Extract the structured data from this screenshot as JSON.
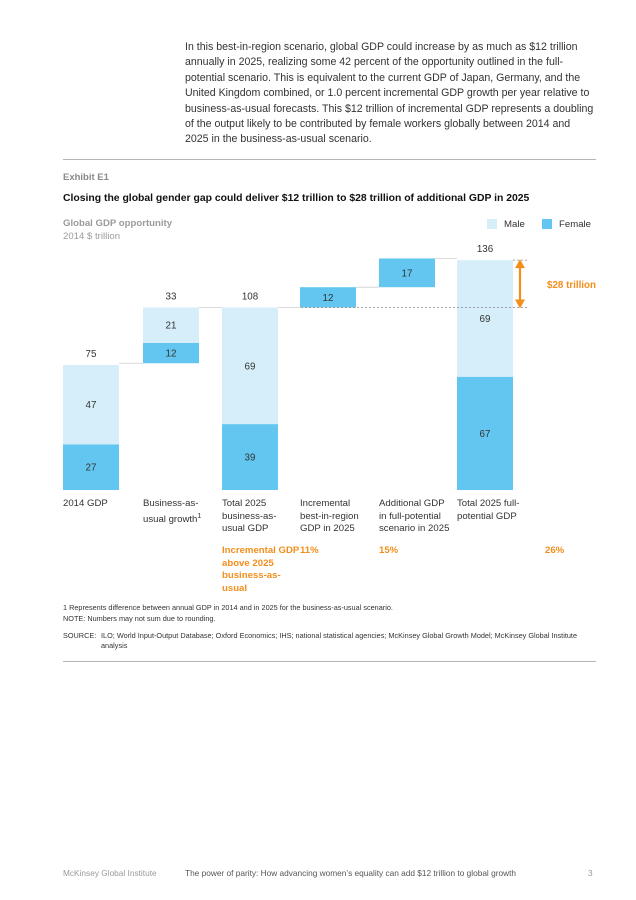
{
  "intro": "In this best-in-region scenario, global GDP could increase by as much as $12 trillion annually in 2025, realizing some 42 percent of the opportunity outlined in the full-potential scenario. This is equivalent to the current GDP of Japan, Germany, and the United Kingdom combined, or 1.0 percent incremental GDP growth per year relative to business-as-usual forecasts. This $12 trillion of incremental GDP represents a doubling of the output likely to be contributed by female workers globally between 2014 and 2025 in the business-as-usual scenario.",
  "exhibit": {
    "label": "Exhibit E1",
    "title": "Closing the global gender gap could deliver $12 trillion to $28 trillion of additional GDP in 2025",
    "metric": "Global GDP opportunity",
    "unit": "2014 $ trillion",
    "legend": {
      "male": "Male",
      "female": "Female"
    }
  },
  "colors": {
    "male": "#d5eef9",
    "female": "#62c6f0",
    "orange": "#f28e1c",
    "dashed": "#888888"
  },
  "chart_data": {
    "type": "bar",
    "subtype": "waterfall-stacked",
    "categories": [
      "2014 GDP",
      "Business-as-usual growth",
      "Total 2025 business-as-usual GDP",
      "Incremental best-in-region GDP in 2025",
      "Additional GDP in full-potential scenario in 2025",
      "Total 2025 full-potential GDP"
    ],
    "category_labels": [
      "2014 GDP",
      "Business-as-\nusual growth¹",
      "Total 2025\nbusiness-as-\nusual GDP",
      "Incremental\nbest-in-region\nGDP in 2025",
      "Additional GDP\nin full-potential\nscenario in 2025",
      "Total 2025 full-\npotential GDP"
    ],
    "bars": [
      {
        "base": 0,
        "segments": [
          {
            "series": "Female",
            "value": 27,
            "label": "27"
          },
          {
            "series": "Male",
            "value": 47,
            "label": "47"
          }
        ],
        "total_label": "75"
      },
      {
        "base": 75,
        "segments": [
          {
            "series": "Female",
            "value": 12,
            "label": "12"
          },
          {
            "series": "Male",
            "value": 21,
            "label": "21"
          }
        ],
        "total_label": "33"
      },
      {
        "base": 0,
        "segments": [
          {
            "series": "Female",
            "value": 39,
            "label": "39"
          },
          {
            "series": "Male",
            "value": 69,
            "label": "69"
          }
        ],
        "total_label": "108"
      },
      {
        "base": 108,
        "segments": [
          {
            "series": "Female",
            "value": 12,
            "label": "12"
          }
        ],
        "total_label": ""
      },
      {
        "base": 120,
        "segments": [
          {
            "series": "Female",
            "value": 17,
            "label": "17"
          }
        ],
        "total_label": ""
      },
      {
        "base": 0,
        "segments": [
          {
            "series": "Female",
            "value": 67,
            "label": "67"
          },
          {
            "series": "Male",
            "value": 69,
            "label": "69"
          }
        ],
        "total_label": "136"
      }
    ],
    "series": [
      "Male",
      "Female"
    ],
    "annotation": {
      "text": "$28 trillion",
      "from": 108,
      "to": 136
    },
    "ylim": [
      0,
      140
    ]
  },
  "incremental": {
    "label": "Incremental GDP above 2025 business-as-usual",
    "pcts": [
      "11%",
      "15%",
      "26%"
    ]
  },
  "footnotes": {
    "note1": "1  Represents difference between annual GDP in 2014 and in 2025 for the business-as-usual scenario.",
    "note2": "NOTE: Numbers may not sum due to rounding.",
    "source_label": "SOURCE:",
    "source": "ILO; World Input-Output Database; Oxford Economics; IHS; national statistical agencies; McKinsey Global Growth Model; McKinsey Global Institute analysis"
  },
  "page_footer": {
    "publisher": "McKinsey Global Institute",
    "title": "The power of parity: How advancing women’s equality can add $12 trillion to global growth",
    "page": "3"
  }
}
